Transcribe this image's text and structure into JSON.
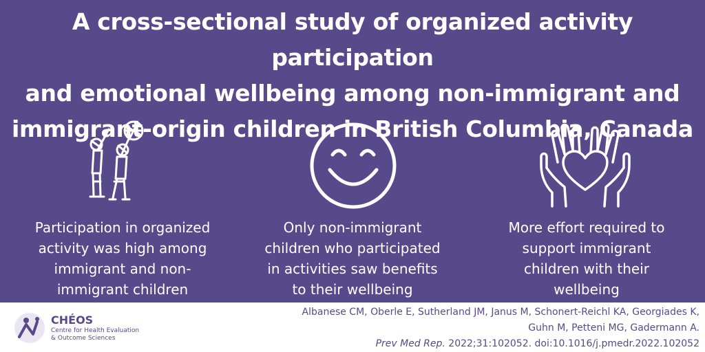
{
  "title_lines": [
    "A cross-sectional study of organized activity participation",
    "and emotional wellbeing among non-immigrant and",
    "immigrant-origin children in British Columbia, Canada"
  ],
  "findings": [
    {
      "icon": "children-playing-ball-icon",
      "lines": [
        "Participation in organized",
        "activity was high among",
        "immigrant and non-",
        "immigrant children"
      ]
    },
    {
      "icon": "smiley-face-icon",
      "lines": [
        "Only non-immigrant",
        "children who participated",
        "in activities saw benefits",
        "to their wellbeing"
      ]
    },
    {
      "icon": "hands-holding-heart-icon",
      "lines": [
        "More effort required to",
        "support immigrant",
        "children with their",
        "wellbeing"
      ]
    }
  ],
  "citation": {
    "authors_line1": "Albanese CM, Oberle E, Sutherland JM, Janus M, Schonert-Reichl KA, Georgiades K,",
    "authors_line2": "Guhn M, Petteni MG, Gadermann A.",
    "journal": "Prev Med Rep.",
    "details": " 2022;31:102052. doi:10.1016/j.pmedr.2022.102052"
  },
  "logo": {
    "name": "CHÉOS",
    "subtitle_line1": "Centre for Health Evaluation",
    "subtitle_line2": "& Outcome Sciences"
  },
  "colors": {
    "background": "#574a8a",
    "text": "#ffffff",
    "footer_text": "#574a8a"
  }
}
